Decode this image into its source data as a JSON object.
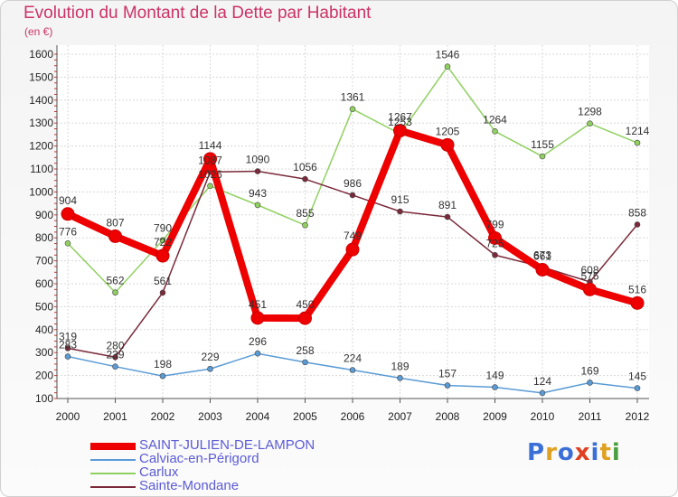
{
  "header": {
    "title": "Evolution du Montant de la Dette par Habitant",
    "subtitle": "(en €)"
  },
  "logo": {
    "text": "Proxiti",
    "letter_colors": [
      "#3b6fd8",
      "#e0a020",
      "#3b6fd8",
      "#e04020",
      "#3b6fd8",
      "#e0a020",
      "#4aa040"
    ]
  },
  "chart_data": {
    "type": "line",
    "title": "Evolution du Montant de la Dette par Habitant",
    "ylabel": "(en €)",
    "xlabel": "",
    "x": [
      "2000",
      "2001",
      "2002",
      "2003",
      "2004",
      "2005",
      "2006",
      "2007",
      "2008",
      "2009",
      "2010",
      "2011",
      "2012"
    ],
    "ylim": [
      100,
      1600
    ],
    "yticks": [
      100,
      200,
      300,
      400,
      500,
      600,
      700,
      800,
      900,
      1000,
      1100,
      1200,
      1300,
      1400,
      1500,
      1600
    ],
    "grid": true,
    "legend_position": "bottom-left",
    "series": [
      {
        "name": "SAINT-JULIEN-DE-LAMPON",
        "color": "#ee0000",
        "values": [
          904,
          807,
          722,
          1144,
          451,
          450,
          749,
          1267,
          1205,
          799,
          661,
          575,
          516
        ]
      },
      {
        "name": "Calviac-en-Périgord",
        "color": "#5b9bd5",
        "values": [
          283,
          239,
          198,
          229,
          296,
          258,
          224,
          189,
          157,
          149,
          124,
          169,
          145
        ]
      },
      {
        "name": "Carlux",
        "color": "#90d060",
        "values": [
          776,
          562,
          790,
          1026,
          943,
          855,
          1361,
          1253,
          1546,
          1264,
          1155,
          1298,
          1214
        ]
      },
      {
        "name": "Sainte-Mondane",
        "color": "#7a2a3a",
        "values": [
          319,
          280,
          561,
          1087,
          1090,
          1056,
          986,
          915,
          891,
          725,
          673,
          608,
          858
        ]
      }
    ]
  }
}
